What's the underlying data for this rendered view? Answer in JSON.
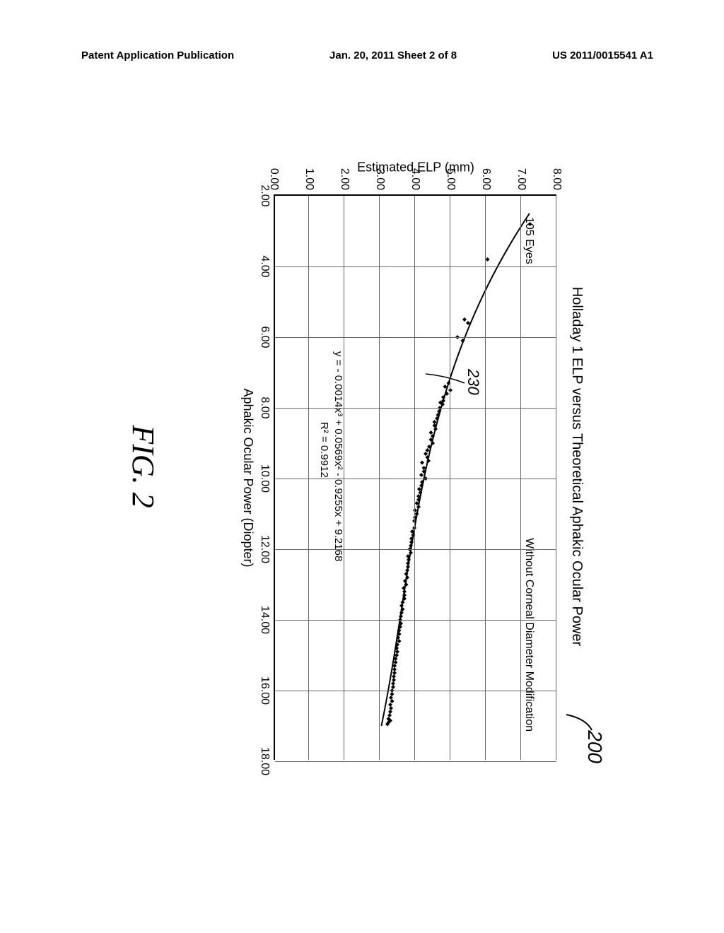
{
  "header": {
    "left": "Patent Application Publication",
    "center": "Jan. 20, 2011  Sheet 2 of 8",
    "right": "US 2011/0015541 A1"
  },
  "figure": {
    "caption": "FIG. 2",
    "ref_number": "200",
    "callout_230": "230"
  },
  "chart": {
    "type": "scatter",
    "title": "Holladay 1 ELP versus Theoretical Aphakic Ocular Power",
    "xlabel": "Aphakic Ocular Power (Diopter)",
    "ylabel": "Estimated ELP (mm)",
    "xlim": [
      2.0,
      18.0
    ],
    "ylim": [
      0.0,
      8.0
    ],
    "xticks": [
      "2.00",
      "4.00",
      "6.00",
      "8.00",
      "10.00",
      "12.00",
      "14.00",
      "16.00",
      "18.00"
    ],
    "yticks": [
      "0.00",
      "1.00",
      "2.00",
      "3.00",
      "4.00",
      "5.00",
      "6.00",
      "7.00",
      "8.00"
    ],
    "annotations": {
      "eyes": "105 Eyes",
      "subtitle": "Without Corneal Diameter Modification",
      "equation": "y = - 0.0014x³ + 0.0569x² - 0.9255x + 9.2168",
      "r2": "R² = 0.9912"
    },
    "marker_color": "#000000",
    "line_color": "#000000",
    "background_color": "#ffffff",
    "gridline_color": "#666666",
    "line_width": 2,
    "marker_size": 6,
    "points": [
      [
        2.8,
        7.25
      ],
      [
        3.8,
        6.05
      ],
      [
        5.5,
        5.4
      ],
      [
        5.6,
        5.5
      ],
      [
        6.0,
        5.2
      ],
      [
        6.1,
        5.35
      ],
      [
        7.3,
        4.95
      ],
      [
        7.4,
        4.85
      ],
      [
        7.6,
        4.9
      ],
      [
        7.7,
        4.8
      ],
      [
        7.8,
        4.8
      ],
      [
        7.85,
        4.72
      ],
      [
        7.9,
        4.78
      ],
      [
        8.0,
        4.7
      ],
      [
        8.1,
        4.68
      ],
      [
        8.2,
        4.65
      ],
      [
        8.3,
        4.62
      ],
      [
        8.4,
        4.55
      ],
      [
        8.5,
        4.55
      ],
      [
        8.6,
        4.58
      ],
      [
        8.7,
        4.45
      ],
      [
        8.8,
        4.5
      ],
      [
        8.9,
        4.45
      ],
      [
        9.0,
        4.5
      ],
      [
        9.1,
        4.4
      ],
      [
        9.2,
        4.35
      ],
      [
        9.3,
        4.3
      ],
      [
        9.4,
        4.35
      ],
      [
        9.5,
        4.38
      ],
      [
        9.55,
        4.2
      ],
      [
        9.7,
        4.25
      ],
      [
        9.8,
        4.25
      ],
      [
        9.9,
        4.18
      ],
      [
        10.0,
        4.3
      ],
      [
        10.1,
        4.2
      ],
      [
        10.2,
        4.18
      ],
      [
        10.3,
        4.12
      ],
      [
        10.4,
        4.15
      ],
      [
        10.5,
        4.1
      ],
      [
        10.6,
        4.1
      ],
      [
        10.7,
        4.05
      ],
      [
        10.8,
        4.1
      ],
      [
        10.9,
        4.0
      ],
      [
        11.0,
        4.05
      ],
      [
        11.1,
        4.0
      ],
      [
        11.2,
        3.98
      ],
      [
        11.4,
        3.98
      ],
      [
        11.5,
        3.92
      ],
      [
        11.6,
        3.95
      ],
      [
        11.7,
        3.9
      ],
      [
        11.8,
        3.9
      ],
      [
        11.9,
        3.88
      ],
      [
        12.0,
        3.85
      ],
      [
        12.1,
        3.88
      ],
      [
        12.2,
        3.8
      ],
      [
        12.3,
        3.82
      ],
      [
        12.4,
        3.8
      ],
      [
        12.5,
        3.8
      ],
      [
        12.6,
        3.78
      ],
      [
        12.7,
        3.75
      ],
      [
        12.8,
        3.78
      ],
      [
        12.9,
        3.72
      ],
      [
        13.0,
        3.75
      ],
      [
        13.1,
        3.68
      ],
      [
        13.2,
        3.7
      ],
      [
        13.3,
        3.7
      ],
      [
        13.4,
        3.7
      ],
      [
        13.5,
        3.65
      ],
      [
        13.6,
        3.62
      ],
      [
        13.7,
        3.65
      ],
      [
        13.8,
        3.62
      ],
      [
        13.9,
        3.6
      ],
      [
        14.0,
        3.58
      ],
      [
        14.1,
        3.6
      ],
      [
        14.2,
        3.58
      ],
      [
        14.3,
        3.55
      ],
      [
        14.4,
        3.55
      ],
      [
        14.5,
        3.52
      ],
      [
        14.6,
        3.55
      ],
      [
        14.7,
        3.5
      ],
      [
        14.8,
        3.48
      ],
      [
        14.9,
        3.5
      ],
      [
        15.0,
        3.48
      ],
      [
        15.1,
        3.45
      ],
      [
        15.2,
        3.45
      ],
      [
        15.3,
        3.42
      ],
      [
        15.4,
        3.42
      ],
      [
        15.5,
        3.42
      ],
      [
        15.6,
        3.4
      ],
      [
        15.7,
        3.4
      ],
      [
        15.8,
        3.38
      ],
      [
        15.9,
        3.38
      ],
      [
        16.0,
        3.35
      ],
      [
        16.1,
        3.35
      ],
      [
        16.2,
        3.32
      ],
      [
        16.3,
        3.35
      ],
      [
        16.4,
        3.3
      ],
      [
        16.5,
        3.32
      ],
      [
        16.6,
        3.3
      ],
      [
        16.7,
        3.28
      ],
      [
        16.8,
        3.25
      ],
      [
        16.85,
        3.3
      ],
      [
        16.9,
        3.25
      ],
      [
        16.95,
        3.22
      ],
      [
        7.5,
        5.0
      ]
    ]
  }
}
